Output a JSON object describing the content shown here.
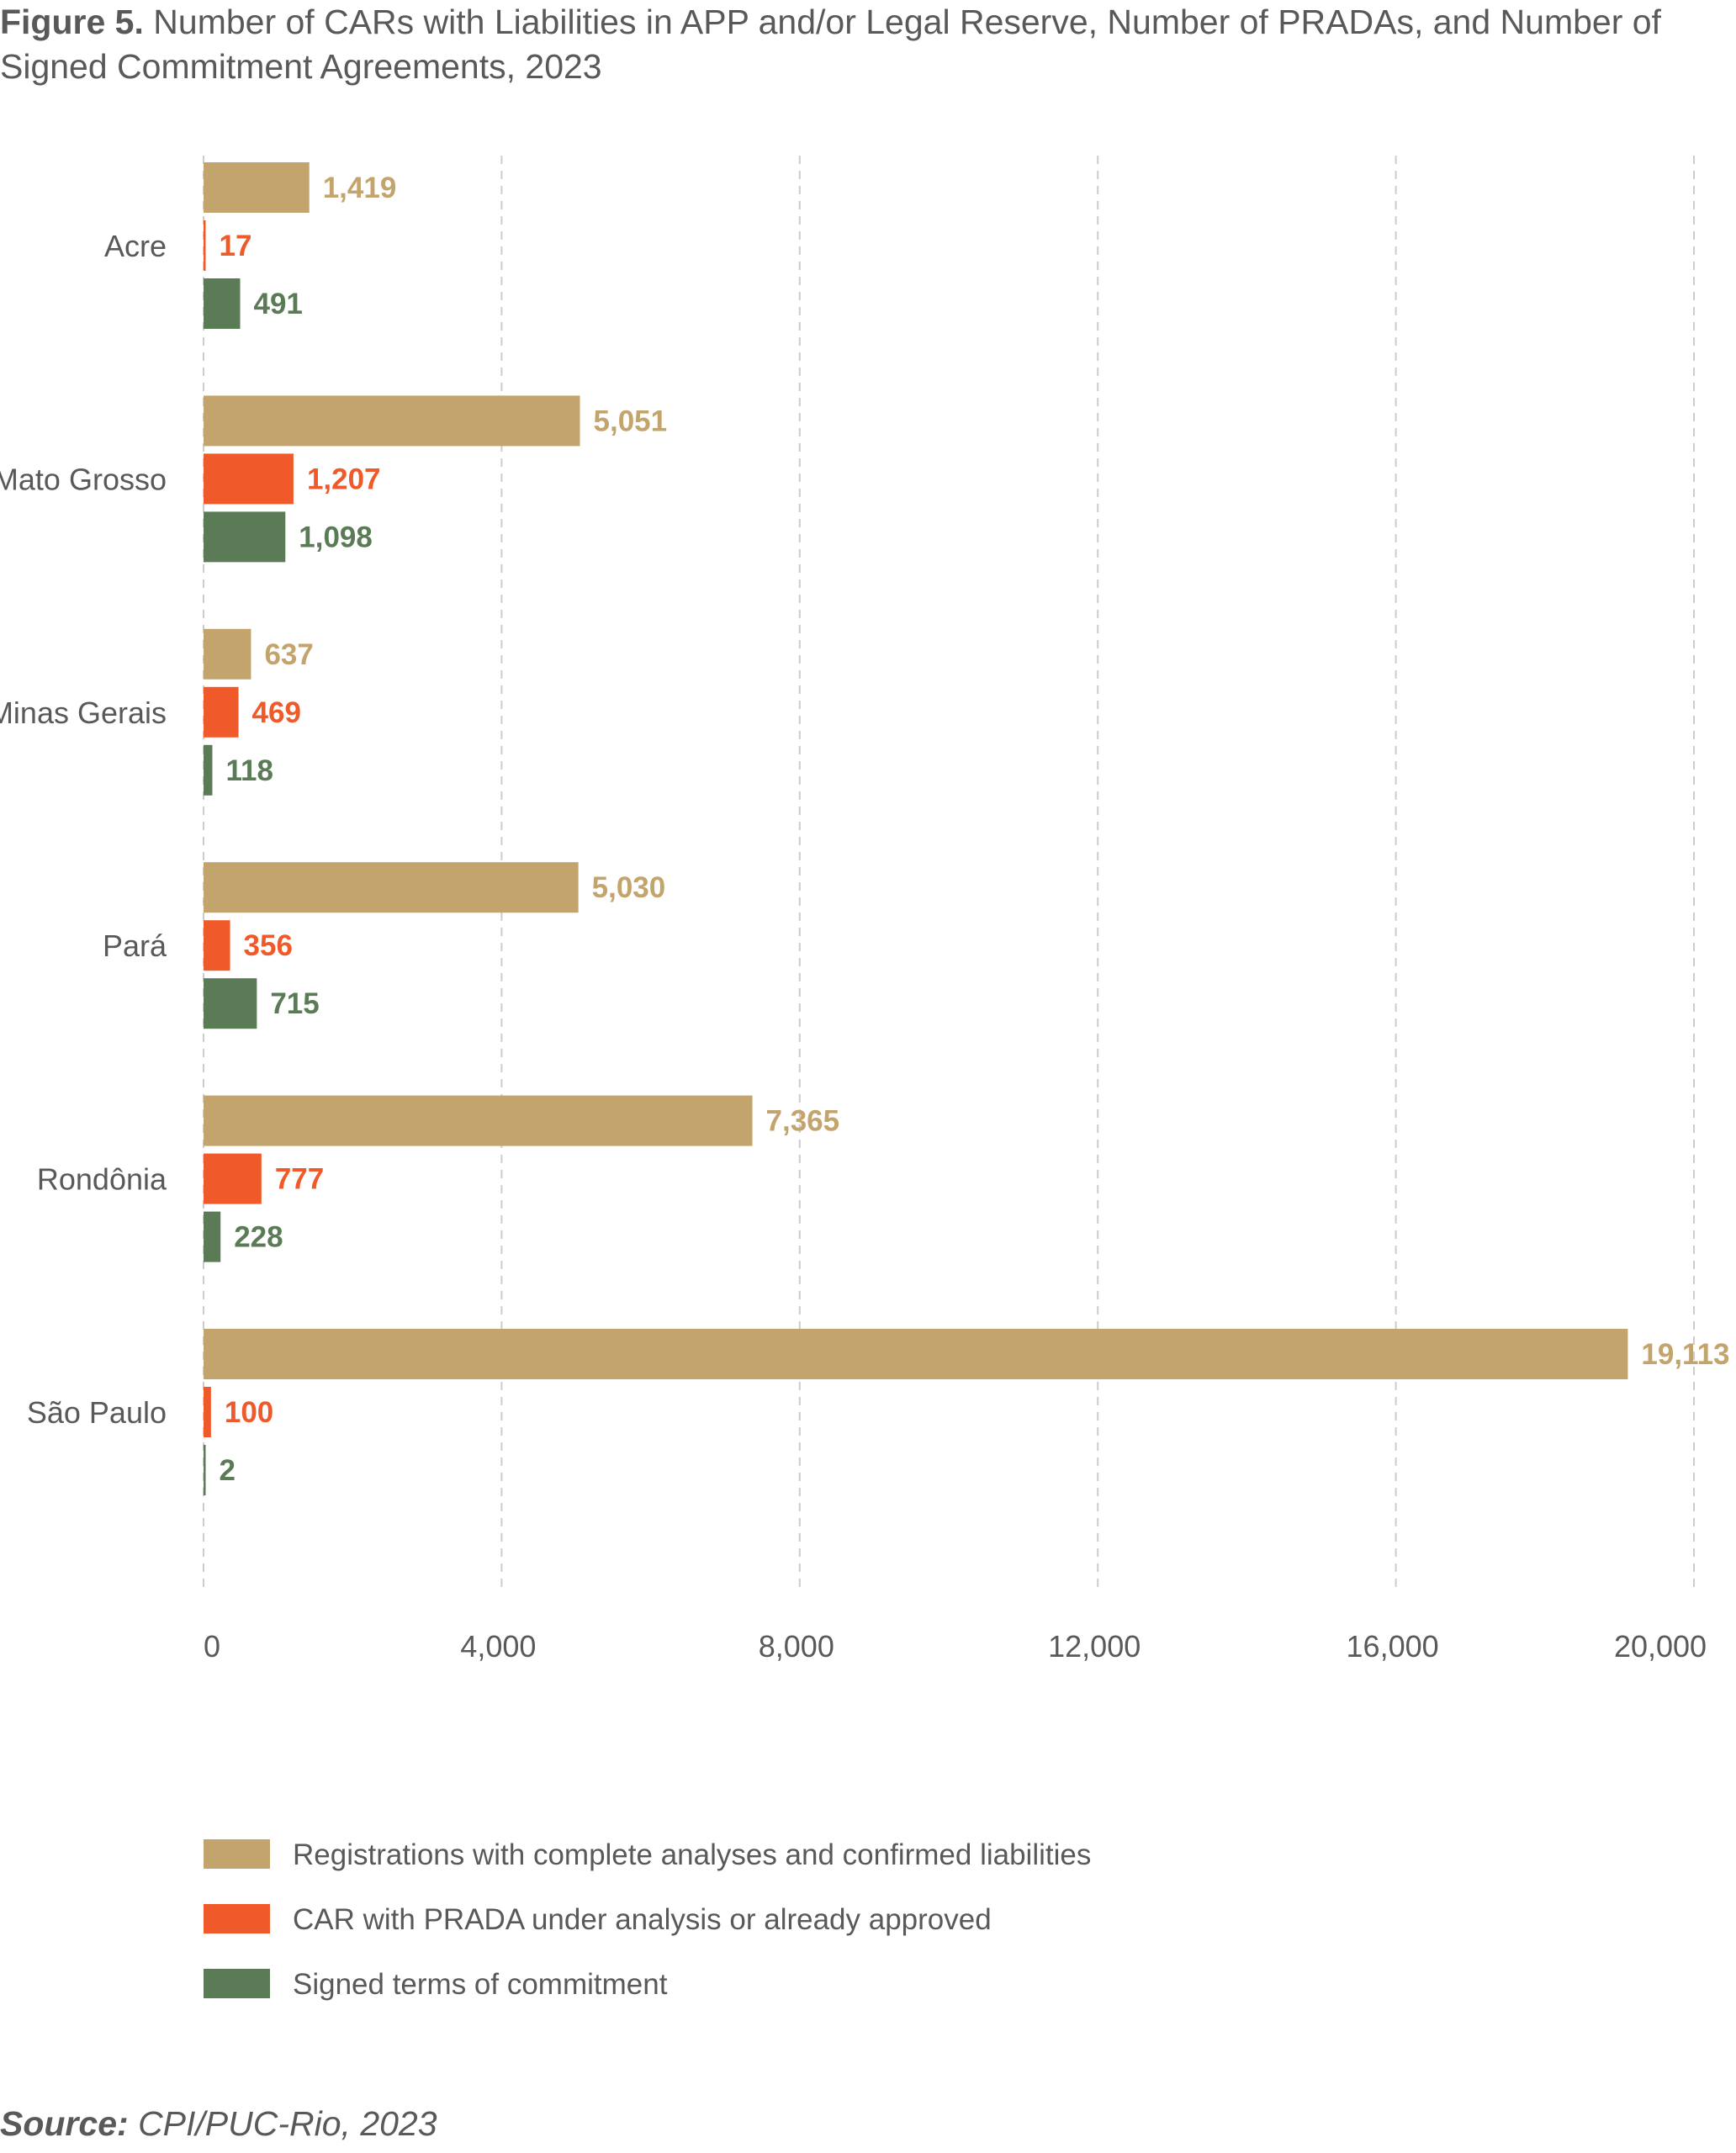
{
  "figure": {
    "label": "Figure 5.",
    "title": "Number of CARs with Liabilities in APP and/or Legal Reserve, Number of PRADAs, and Number of Signed Commitment Agreements, 2023"
  },
  "source": {
    "label": "Source:",
    "text": "CPI/PUC-Rio, 2023"
  },
  "colors": {
    "registrations": "#c2a46c",
    "prada": "#f05a2a",
    "signed": "#5b7b57",
    "axis_text": "#58595b",
    "grid": "#cccccc"
  },
  "chart_data": {
    "type": "bar",
    "orientation": "horizontal",
    "categories": [
      "Acre",
      "Mato Grosso",
      "Minas Gerais",
      "Pará",
      "Rondônia",
      "São Paulo"
    ],
    "series": [
      {
        "name": "Registrations with complete analyses and confirmed liabilities",
        "values": [
          1419,
          5051,
          637,
          5030,
          7365,
          19113
        ],
        "labels": [
          "1,419",
          "5,051",
          "637",
          "5,030",
          "7,365",
          "19,113"
        ]
      },
      {
        "name": "CAR with PRADA under analysis or already approved",
        "values": [
          17,
          1207,
          469,
          356,
          777,
          100
        ],
        "labels": [
          "17",
          "1,207",
          "469",
          "356",
          "777",
          "100"
        ]
      },
      {
        "name": "Signed terms of commitment",
        "values": [
          491,
          1098,
          118,
          715,
          228,
          2
        ],
        "labels": [
          "491",
          "1,098",
          "118",
          "715",
          "228",
          "2"
        ]
      }
    ],
    "xlim": [
      0,
      20000
    ],
    "xticks": [
      0,
      4000,
      8000,
      12000,
      16000,
      20000
    ],
    "xtick_labels": [
      "0",
      "4,000",
      "8,000",
      "12,000",
      "16,000",
      "20,000"
    ],
    "grid": true,
    "legend": "bottom-left"
  }
}
